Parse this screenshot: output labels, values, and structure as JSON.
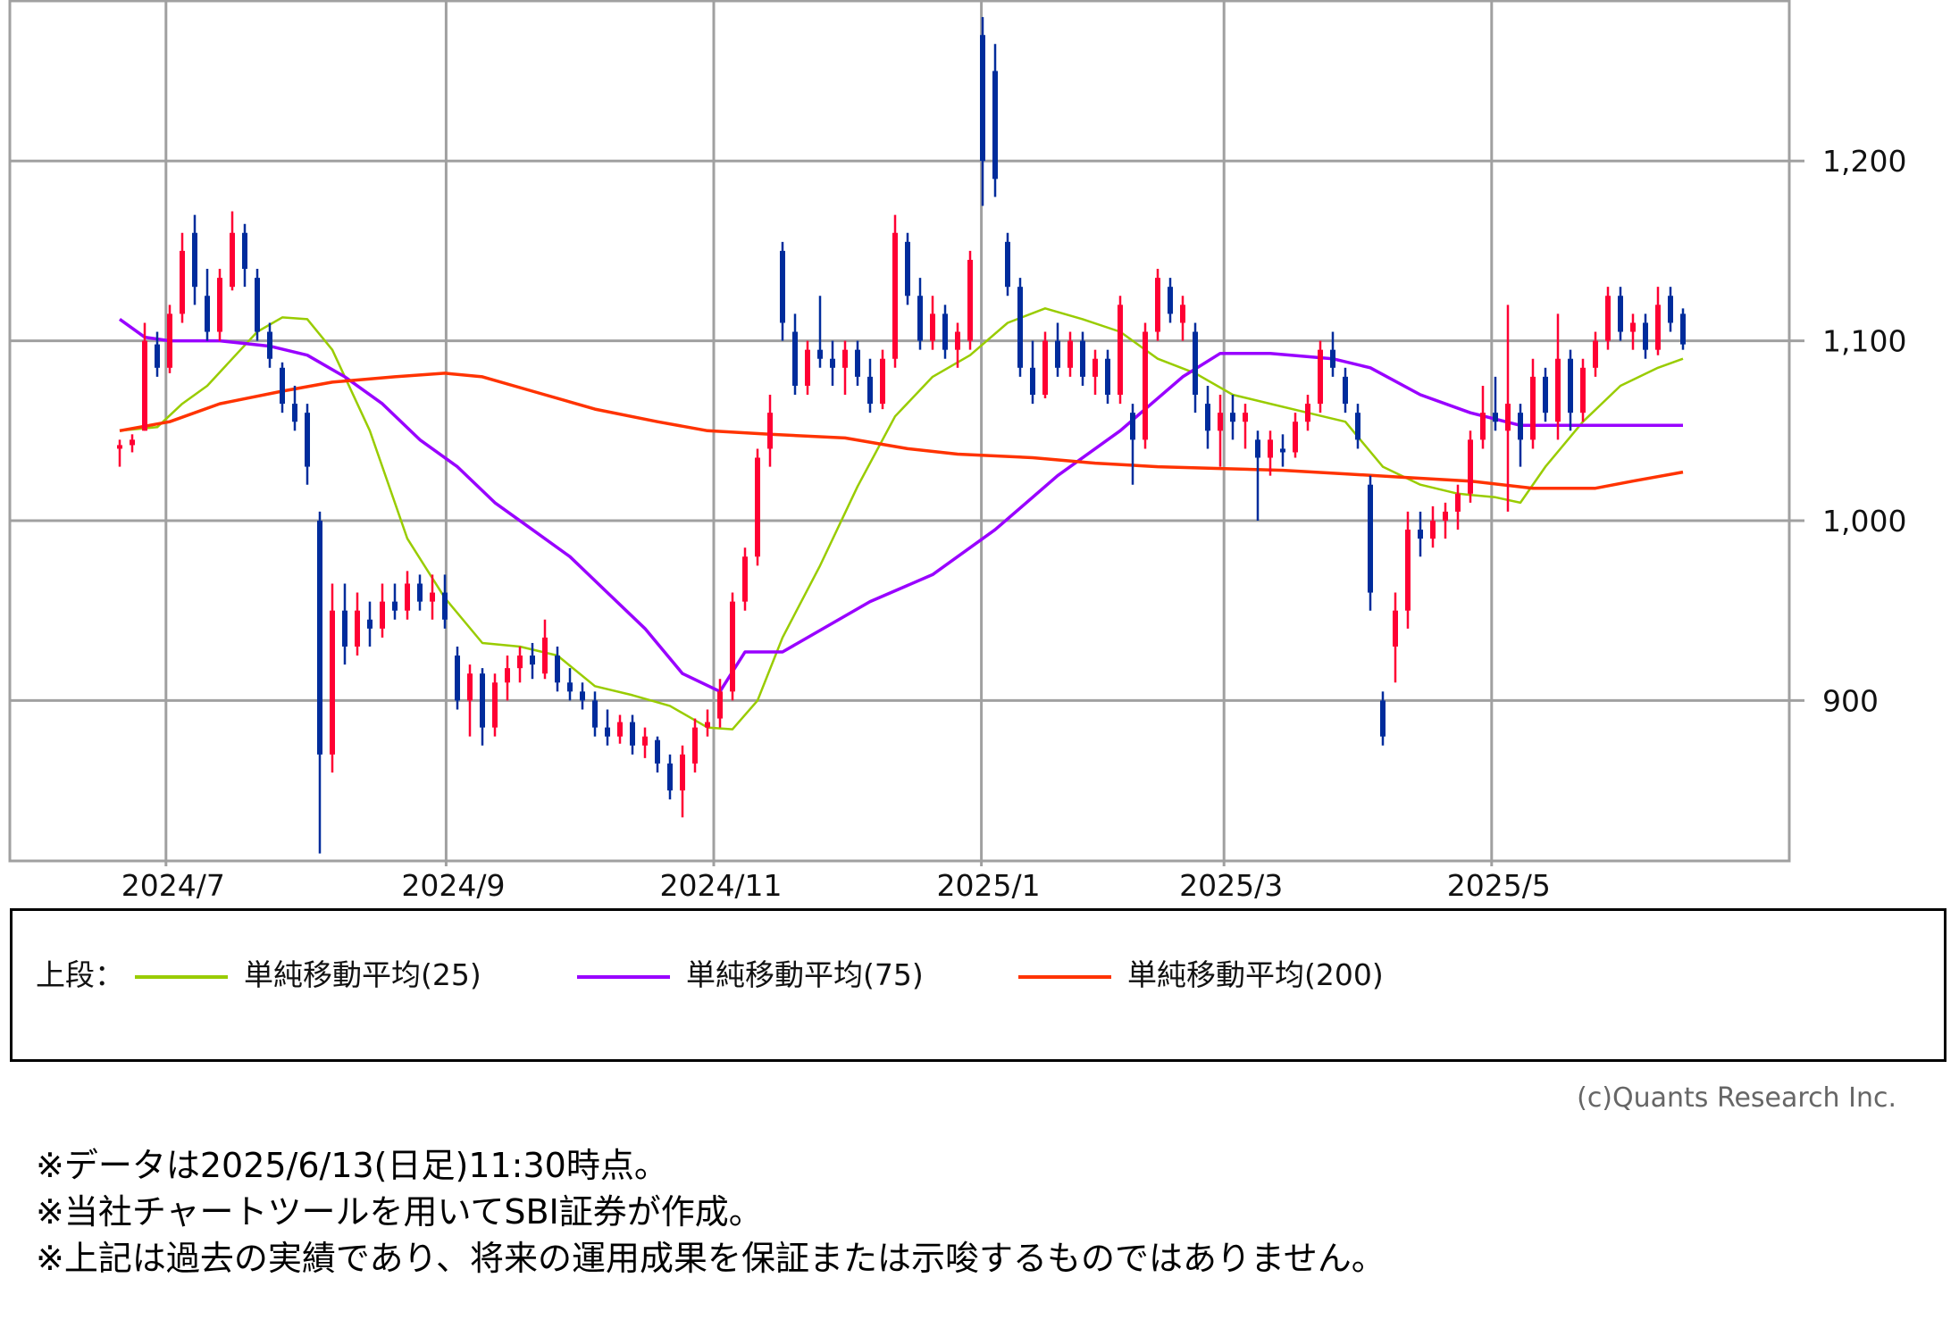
{
  "chart_data": {
    "type": "candlestick",
    "ylim": [
      811,
      1289
    ],
    "y_ticks": [
      {
        "value": 1200,
        "label": "1,200"
      },
      {
        "value": 1100,
        "label": "1,100"
      },
      {
        "value": 1000,
        "label": "1,000"
      },
      {
        "value": 900,
        "label": "900"
      }
    ],
    "x_ticks": [
      {
        "index": 3.7,
        "label": "2024/7"
      },
      {
        "index": 26.1,
        "label": "2024/9"
      },
      {
        "index": 47.5,
        "label": "2024/11"
      },
      {
        "index": 68.9,
        "label": "2025/1"
      },
      {
        "index": 88.3,
        "label": "2025/3"
      },
      {
        "index": 109.7,
        "label": "2025/5"
      }
    ],
    "grid": true,
    "colors": {
      "up": "#ff0033",
      "down": "#002c9c",
      "grid": "#a0a0a0"
    },
    "candles_ohlc": [
      [
        1040,
        1045,
        1030,
        1042
      ],
      [
        1042,
        1048,
        1038,
        1045
      ],
      [
        1050,
        1110,
        1050,
        1100
      ],
      [
        1098,
        1105,
        1080,
        1085
      ],
      [
        1085,
        1120,
        1082,
        1115
      ],
      [
        1115,
        1160,
        1110,
        1150
      ],
      [
        1160,
        1170,
        1120,
        1130
      ],
      [
        1125,
        1140,
        1100,
        1105
      ],
      [
        1105,
        1140,
        1100,
        1135
      ],
      [
        1130,
        1172,
        1128,
        1160
      ],
      [
        1160,
        1165,
        1130,
        1140
      ],
      [
        1135,
        1140,
        1100,
        1105
      ],
      [
        1105,
        1110,
        1085,
        1090
      ],
      [
        1085,
        1088,
        1060,
        1065
      ],
      [
        1065,
        1075,
        1050,
        1055
      ],
      [
        1060,
        1065,
        1020,
        1030
      ],
      [
        1000,
        1005,
        815,
        870
      ],
      [
        870,
        965,
        860,
        950
      ],
      [
        950,
        965,
        920,
        930
      ],
      [
        930,
        960,
        925,
        950
      ],
      [
        945,
        955,
        930,
        940
      ],
      [
        940,
        965,
        935,
        955
      ],
      [
        955,
        965,
        945,
        950
      ],
      [
        950,
        972,
        945,
        965
      ],
      [
        965,
        970,
        950,
        955
      ],
      [
        955,
        970,
        945,
        960
      ],
      [
        960,
        970,
        940,
        945
      ],
      [
        925,
        930,
        895,
        900
      ],
      [
        900,
        920,
        880,
        915
      ],
      [
        915,
        918,
        875,
        885
      ],
      [
        885,
        915,
        880,
        910
      ],
      [
        910,
        925,
        900,
        918
      ],
      [
        918,
        930,
        910,
        925
      ],
      [
        925,
        932,
        912,
        920
      ],
      [
        915,
        945,
        912,
        935
      ],
      [
        925,
        930,
        905,
        910
      ],
      [
        910,
        918,
        900,
        905
      ],
      [
        905,
        910,
        895,
        900
      ],
      [
        900,
        905,
        880,
        885
      ],
      [
        885,
        895,
        875,
        880
      ],
      [
        880,
        892,
        876,
        888
      ],
      [
        888,
        892,
        870,
        875
      ],
      [
        875,
        885,
        868,
        880
      ],
      [
        878,
        880,
        860,
        865
      ],
      [
        865,
        870,
        845,
        850
      ],
      [
        850,
        875,
        835,
        870
      ],
      [
        865,
        890,
        860,
        885
      ],
      [
        885,
        895,
        880,
        888
      ],
      [
        890,
        912,
        885,
        905
      ],
      [
        905,
        960,
        900,
        955
      ],
      [
        955,
        985,
        950,
        980
      ],
      [
        980,
        1040,
        975,
        1035
      ],
      [
        1040,
        1070,
        1030,
        1060
      ],
      [
        1150,
        1155,
        1100,
        1110
      ],
      [
        1105,
        1115,
        1070,
        1075
      ],
      [
        1075,
        1100,
        1070,
        1095
      ],
      [
        1095,
        1125,
        1085,
        1090
      ],
      [
        1090,
        1100,
        1075,
        1085
      ],
      [
        1085,
        1100,
        1070,
        1095
      ],
      [
        1095,
        1100,
        1075,
        1080
      ],
      [
        1080,
        1090,
        1060,
        1065
      ],
      [
        1065,
        1095,
        1062,
        1090
      ],
      [
        1090,
        1170,
        1085,
        1160
      ],
      [
        1155,
        1160,
        1120,
        1125
      ],
      [
        1125,
        1135,
        1095,
        1100
      ],
      [
        1100,
        1125,
        1095,
        1115
      ],
      [
        1115,
        1120,
        1090,
        1095
      ],
      [
        1095,
        1110,
        1085,
        1105
      ],
      [
        1100,
        1150,
        1095,
        1145
      ],
      [
        1270,
        1280,
        1175,
        1200
      ],
      [
        1250,
        1265,
        1180,
        1190
      ],
      [
        1155,
        1160,
        1125,
        1130
      ],
      [
        1130,
        1135,
        1080,
        1085
      ],
      [
        1085,
        1100,
        1065,
        1070
      ],
      [
        1070,
        1105,
        1068,
        1100
      ],
      [
        1100,
        1110,
        1080,
        1085
      ],
      [
        1085,
        1105,
        1080,
        1100
      ],
      [
        1100,
        1105,
        1075,
        1080
      ],
      [
        1080,
        1095,
        1070,
        1090
      ],
      [
        1090,
        1095,
        1065,
        1070
      ],
      [
        1070,
        1125,
        1065,
        1120
      ],
      [
        1060,
        1065,
        1020,
        1045
      ],
      [
        1045,
        1110,
        1040,
        1105
      ],
      [
        1105,
        1140,
        1100,
        1135
      ],
      [
        1130,
        1135,
        1110,
        1115
      ],
      [
        1110,
        1125,
        1100,
        1120
      ],
      [
        1105,
        1110,
        1060,
        1070
      ],
      [
        1065,
        1075,
        1040,
        1050
      ],
      [
        1050,
        1070,
        1030,
        1060
      ],
      [
        1060,
        1070,
        1045,
        1055
      ],
      [
        1055,
        1065,
        1040,
        1060
      ],
      [
        1045,
        1050,
        1000,
        1035
      ],
      [
        1035,
        1050,
        1025,
        1045
      ],
      [
        1040,
        1048,
        1030,
        1038
      ],
      [
        1038,
        1060,
        1035,
        1055
      ],
      [
        1055,
        1070,
        1050,
        1065
      ],
      [
        1065,
        1100,
        1060,
        1095
      ],
      [
        1095,
        1105,
        1080,
        1085
      ],
      [
        1080,
        1085,
        1060,
        1065
      ],
      [
        1060,
        1065,
        1040,
        1045
      ],
      [
        1020,
        1025,
        950,
        960
      ],
      [
        900,
        905,
        875,
        880
      ],
      [
        930,
        960,
        910,
        950
      ],
      [
        950,
        1005,
        940,
        995
      ],
      [
        995,
        1005,
        980,
        990
      ],
      [
        990,
        1008,
        985,
        1000
      ],
      [
        1000,
        1010,
        990,
        1005
      ],
      [
        1005,
        1020,
        995,
        1015
      ],
      [
        1015,
        1050,
        1010,
        1045
      ],
      [
        1045,
        1075,
        1040,
        1060
      ],
      [
        1060,
        1080,
        1050,
        1055
      ],
      [
        1050,
        1120,
        1005,
        1065
      ],
      [
        1060,
        1065,
        1030,
        1045
      ],
      [
        1045,
        1090,
        1040,
        1080
      ],
      [
        1080,
        1085,
        1055,
        1060
      ],
      [
        1055,
        1115,
        1045,
        1090
      ],
      [
        1090,
        1095,
        1050,
        1060
      ],
      [
        1060,
        1090,
        1055,
        1085
      ],
      [
        1085,
        1105,
        1080,
        1100
      ],
      [
        1100,
        1130,
        1095,
        1125
      ],
      [
        1125,
        1130,
        1100,
        1105
      ],
      [
        1105,
        1115,
        1095,
        1110
      ],
      [
        1110,
        1115,
        1090,
        1095
      ],
      [
        1095,
        1130,
        1092,
        1120
      ],
      [
        1125,
        1130,
        1105,
        1110
      ],
      [
        1115,
        1118,
        1095,
        1098
      ]
    ],
    "series": [
      {
        "name": "単純移動平均(25)",
        "color": "#99cc00",
        "points": [
          [
            0,
            1050
          ],
          [
            3,
            1052
          ],
          [
            5,
            1065
          ],
          [
            7,
            1075
          ],
          [
            9,
            1090
          ],
          [
            11,
            1105
          ],
          [
            13,
            1113
          ],
          [
            15,
            1112
          ],
          [
            17,
            1095
          ],
          [
            20,
            1050
          ],
          [
            23,
            990
          ],
          [
            26,
            957
          ],
          [
            29,
            932
          ],
          [
            32,
            930
          ],
          [
            35,
            925
          ],
          [
            38,
            908
          ],
          [
            41,
            903
          ],
          [
            44,
            897
          ],
          [
            47,
            885
          ],
          [
            49,
            884
          ],
          [
            51,
            900
          ],
          [
            53,
            935
          ],
          [
            56,
            975
          ],
          [
            59,
            1019
          ],
          [
            62,
            1058
          ],
          [
            65,
            1080
          ],
          [
            68,
            1092
          ],
          [
            71,
            1110
          ],
          [
            74,
            1118
          ],
          [
            77,
            1112
          ],
          [
            80,
            1105
          ],
          [
            83,
            1090
          ],
          [
            86,
            1082
          ],
          [
            89,
            1070
          ],
          [
            92,
            1065
          ],
          [
            95,
            1060
          ],
          [
            98,
            1055
          ],
          [
            101,
            1030
          ],
          [
            104,
            1020
          ],
          [
            107,
            1015
          ],
          [
            110,
            1013
          ],
          [
            112,
            1010
          ],
          [
            114,
            1030
          ],
          [
            117,
            1055
          ],
          [
            120,
            1075
          ],
          [
            123,
            1085
          ],
          [
            125,
            1090
          ]
        ]
      },
      {
        "name": "単純移動平均(75)",
        "color": "#9900ff",
        "points": [
          [
            0,
            1112
          ],
          [
            2,
            1102
          ],
          [
            4,
            1100
          ],
          [
            8,
            1100
          ],
          [
            12,
            1097
          ],
          [
            15,
            1092
          ],
          [
            18,
            1080
          ],
          [
            21,
            1065
          ],
          [
            24,
            1045
          ],
          [
            27,
            1030
          ],
          [
            30,
            1010
          ],
          [
            33,
            995
          ],
          [
            36,
            980
          ],
          [
            39,
            960
          ],
          [
            42,
            940
          ],
          [
            45,
            915
          ],
          [
            48,
            905
          ],
          [
            50,
            927
          ],
          [
            53,
            927
          ],
          [
            55,
            935
          ],
          [
            60,
            955
          ],
          [
            65,
            970
          ],
          [
            70,
            995
          ],
          [
            75,
            1025
          ],
          [
            80,
            1050
          ],
          [
            85,
            1080
          ],
          [
            88,
            1093
          ],
          [
            92,
            1093
          ],
          [
            97,
            1090
          ],
          [
            100,
            1085
          ],
          [
            104,
            1070
          ],
          [
            108,
            1060
          ],
          [
            112,
            1053
          ],
          [
            116,
            1053
          ],
          [
            120,
            1053
          ],
          [
            125,
            1053
          ]
        ]
      },
      {
        "name": "単純移動平均(200)",
        "color": "#ff3300",
        "points": [
          [
            0,
            1050
          ],
          [
            4,
            1055
          ],
          [
            8,
            1065
          ],
          [
            13,
            1072
          ],
          [
            17,
            1077
          ],
          [
            22,
            1080
          ],
          [
            26,
            1082
          ],
          [
            29,
            1080
          ],
          [
            33,
            1072
          ],
          [
            38,
            1062
          ],
          [
            43,
            1055
          ],
          [
            47,
            1050
          ],
          [
            52,
            1048
          ],
          [
            58,
            1046
          ],
          [
            63,
            1040
          ],
          [
            67,
            1037
          ],
          [
            73,
            1035
          ],
          [
            78,
            1032
          ],
          [
            83,
            1030
          ],
          [
            88,
            1029
          ],
          [
            93,
            1028
          ],
          [
            98,
            1026
          ],
          [
            103,
            1024
          ],
          [
            108,
            1022
          ],
          [
            113,
            1018
          ],
          [
            118,
            1018
          ],
          [
            121,
            1022
          ],
          [
            125,
            1027
          ]
        ]
      }
    ]
  },
  "legend": {
    "prefix": "上段：",
    "items": [
      {
        "label": "単純移動平均(25)",
        "color": "#99cc00"
      },
      {
        "label": "単純移動平均(75)",
        "color": "#9900ff"
      },
      {
        "label": "単純移動平均(200)",
        "color": "#ff3300"
      }
    ]
  },
  "copyright": "(c)Quants Research Inc.",
  "notes": [
    "※データは2025/6/13(日足)11:30時点。",
    "※当社チャートツールを用いてSBI証券が作成。",
    "※上記は過去の実績であり、将来の運用成果を保証または示唆するものではありません。"
  ]
}
